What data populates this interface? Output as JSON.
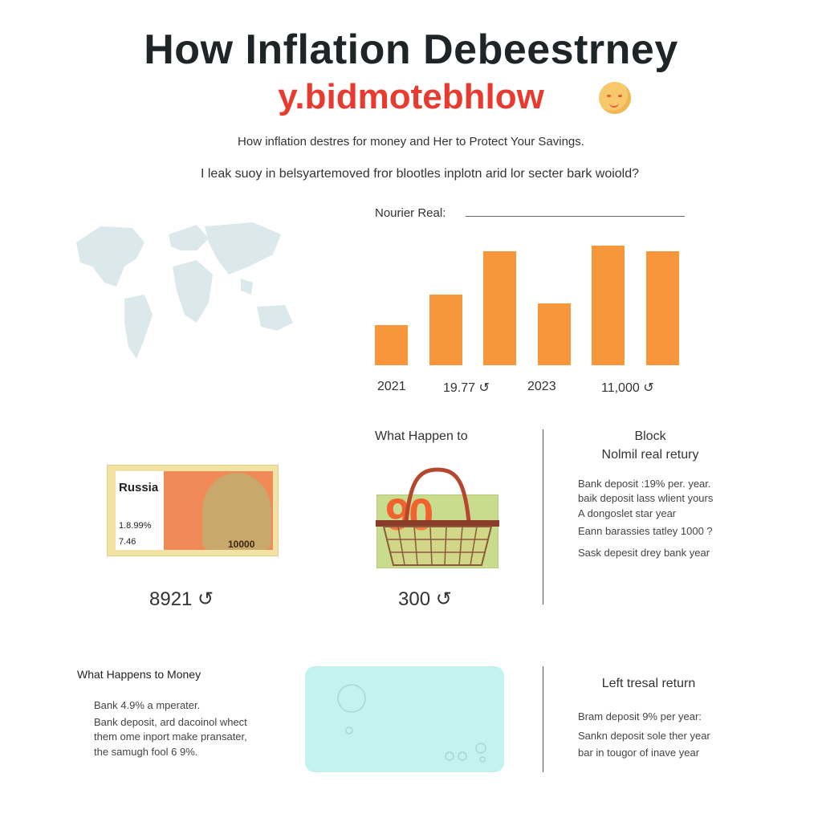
{
  "header": {
    "title": "How Inflation Debeestrney",
    "subtitle": "y.bidmotebhlow",
    "tagline": "How inflation destres for money and Her to Protect Your Savings.",
    "question": "I leak suoy in belsyartemoved fror blootles inplotn arid lor secter bark woiold?"
  },
  "icons": {
    "emoji": "smiley-emoji-icon",
    "map": "world-map-icon",
    "banknote": "banknote-icon",
    "basket": "shopping-basket-icon"
  },
  "chart_data": {
    "type": "bar",
    "title": "Nourier Real:",
    "values": [
      0.35,
      0.62,
      1.0,
      0.54,
      1.05,
      1.0
    ],
    "tick_labels": [
      "2021",
      "19.77 ↺",
      "2023",
      "11,000 ↺"
    ],
    "color": "#f7963b"
  },
  "cards": {
    "banknote": {
      "country": "Russia",
      "rate": "1.8.99%",
      "value": "7.46",
      "denomination": "10000",
      "amount": "8921 ↺"
    },
    "basket": {
      "label": "What Happen to",
      "badge": "90",
      "amount": "300 ↺"
    },
    "block": {
      "title_line1": "Block",
      "title_line2": "Nolmil real retury",
      "lines": [
        "Bank deposit :19% per. year.",
        "baik deposit lass wlient yours",
        "A dongoslet star year",
        "Eann barassies tatley 1000 ?",
        "Sask depesit drey bank year"
      ]
    }
  },
  "bottom": {
    "money": {
      "title": "What Happens to Money",
      "lines": [
        "Bank 4.9% a mperater.",
        "Bank deposit, ard dacoinol whect",
        "them ome inport make pransater,",
        "the samugh fool 6 9%."
      ]
    },
    "return": {
      "title": "Left tresal return",
      "lines": [
        "Bram deposit 9% per year:",
        "Sankn deposit sole ther year",
        "bar in tougor of inave year"
      ]
    }
  },
  "colors": {
    "accent_orange": "#f7963b",
    "title_red": "#e83a2e",
    "panel_cyan": "#c4f2f0"
  }
}
